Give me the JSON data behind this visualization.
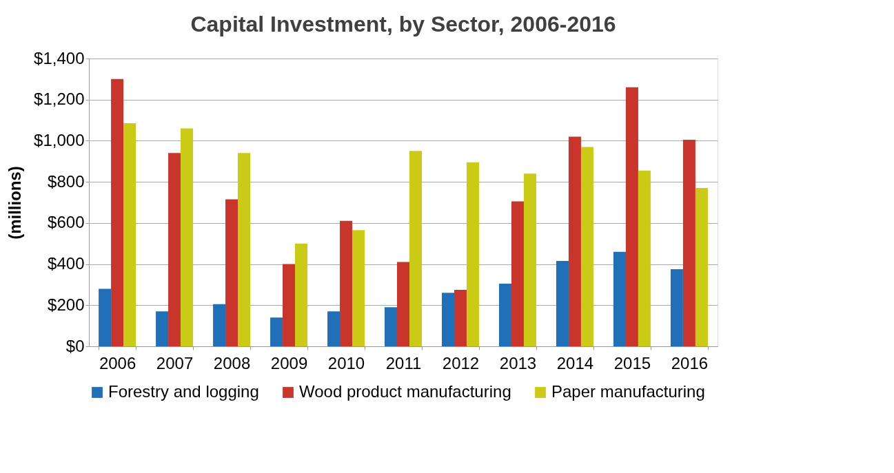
{
  "chart_data": {
    "type": "bar",
    "title": "Capital Investment, by Sector, 2006-2016",
    "ylabel": "(millions)",
    "categories": [
      "2006",
      "2007",
      "2008",
      "2009",
      "2010",
      "2011",
      "2012",
      "2013",
      "2014",
      "2015",
      "2016"
    ],
    "series": [
      {
        "name": "Forestry and logging",
        "color": "#1f70b8",
        "values": [
          280,
          170,
          205,
          140,
          170,
          190,
          260,
          305,
          415,
          460,
          375
        ]
      },
      {
        "name": "Wood product manufacturing",
        "color": "#c9352b",
        "values": [
          1300,
          940,
          715,
          400,
          610,
          410,
          275,
          705,
          1020,
          1260,
          1005
        ]
      },
      {
        "name": "Paper manufacturing",
        "color": "#cbca14",
        "values": [
          1085,
          1060,
          940,
          500,
          565,
          950,
          895,
          840,
          970,
          855,
          770
        ]
      }
    ],
    "ylim": [
      0,
      1400
    ],
    "yticks": [
      {
        "value": 0,
        "label": "$0"
      },
      {
        "value": 200,
        "label": "$200"
      },
      {
        "value": 400,
        "label": "$400"
      },
      {
        "value": 600,
        "label": "$600"
      },
      {
        "value": 800,
        "label": "$800"
      },
      {
        "value": 1000,
        "label": "$1,000"
      },
      {
        "value": 1200,
        "label": "$1,200"
      },
      {
        "value": 1400,
        "label": "$1,400"
      }
    ],
    "grid": "y",
    "legend": "bottom"
  }
}
